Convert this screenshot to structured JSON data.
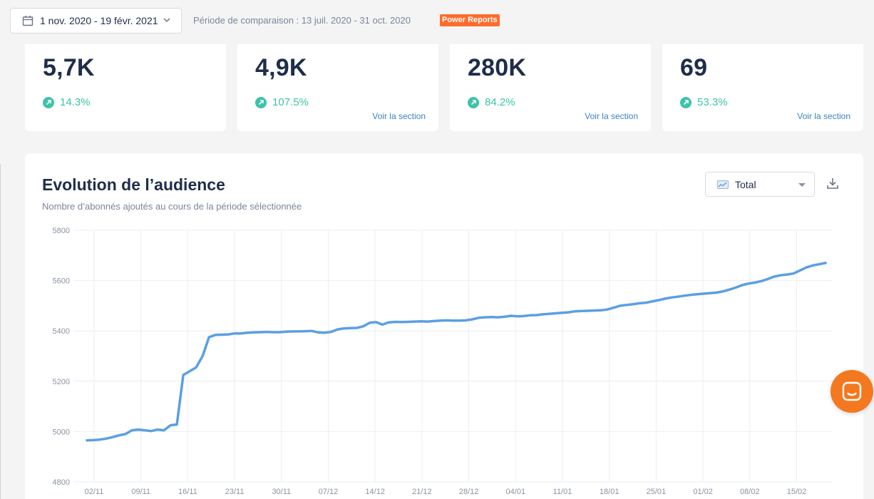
{
  "header": {
    "date_range": "1 nov. 2020 - 19 févr. 2021",
    "comparison": "Période de comparaison : 13 juil. 2020 - 31 oct. 2020",
    "badge": "Power Reports"
  },
  "kpis": [
    {
      "value": "5,7K",
      "trend": "14.3%",
      "link": ""
    },
    {
      "value": "4,9K",
      "trend": "107.5%",
      "link": "Voir la section"
    },
    {
      "value": "280K",
      "trend": "84.2%",
      "link": "Voir la section"
    },
    {
      "value": "69",
      "trend": "53.3%",
      "link": "Voir la section"
    }
  ],
  "panel": {
    "title": "Evolution de l’audience",
    "subtitle": "Nombre d’abonnés ajoutés au cours de la période sélectionnée",
    "select_value": "Total"
  },
  "colors": {
    "accent": "#5b9fe3",
    "trend": "#3cc3a8",
    "badge": "#ff6b2b",
    "chat": "#f4781f"
  },
  "chart_data": {
    "type": "line",
    "ylim": [
      4800,
      5800
    ],
    "yticks": [
      5800,
      5600,
      5400,
      5200,
      5000,
      4800
    ],
    "xticks": [
      "02/11",
      "09/11",
      "16/11",
      "23/11",
      "30/11",
      "07/12",
      "14/12",
      "21/12",
      "28/12",
      "04/01",
      "11/01",
      "18/01",
      "25/01",
      "01/02",
      "08/02",
      "15/02"
    ],
    "series": [
      {
        "values": [
          4965,
          4966,
          4968,
          4972,
          4978,
          4985,
          4990,
          5005,
          5008,
          5005,
          5002,
          5008,
          5005,
          5025,
          5028,
          5225,
          5240,
          5255,
          5300,
          5375,
          5384,
          5385,
          5386,
          5390,
          5390,
          5393,
          5394,
          5395,
          5396,
          5395,
          5395,
          5397,
          5398,
          5398,
          5399,
          5400,
          5394,
          5393,
          5396,
          5406,
          5410,
          5411,
          5412,
          5418,
          5432,
          5435,
          5425,
          5434,
          5436,
          5435,
          5436,
          5437,
          5438,
          5437,
          5439,
          5441,
          5442,
          5441,
          5441,
          5442,
          5446,
          5452,
          5454,
          5455,
          5454,
          5456,
          5460,
          5458,
          5459,
          5462,
          5463,
          5466,
          5468,
          5470,
          5472,
          5474,
          5478,
          5479,
          5480,
          5481,
          5482,
          5485,
          5492,
          5500,
          5503,
          5506,
          5510,
          5512,
          5517,
          5522,
          5528,
          5533,
          5536,
          5540,
          5543,
          5546,
          5548,
          5550,
          5552,
          5557,
          5564,
          5572,
          5582,
          5588,
          5592,
          5598,
          5606,
          5616,
          5621,
          5624,
          5628,
          5640,
          5652,
          5660,
          5665,
          5670
        ]
      }
    ]
  }
}
